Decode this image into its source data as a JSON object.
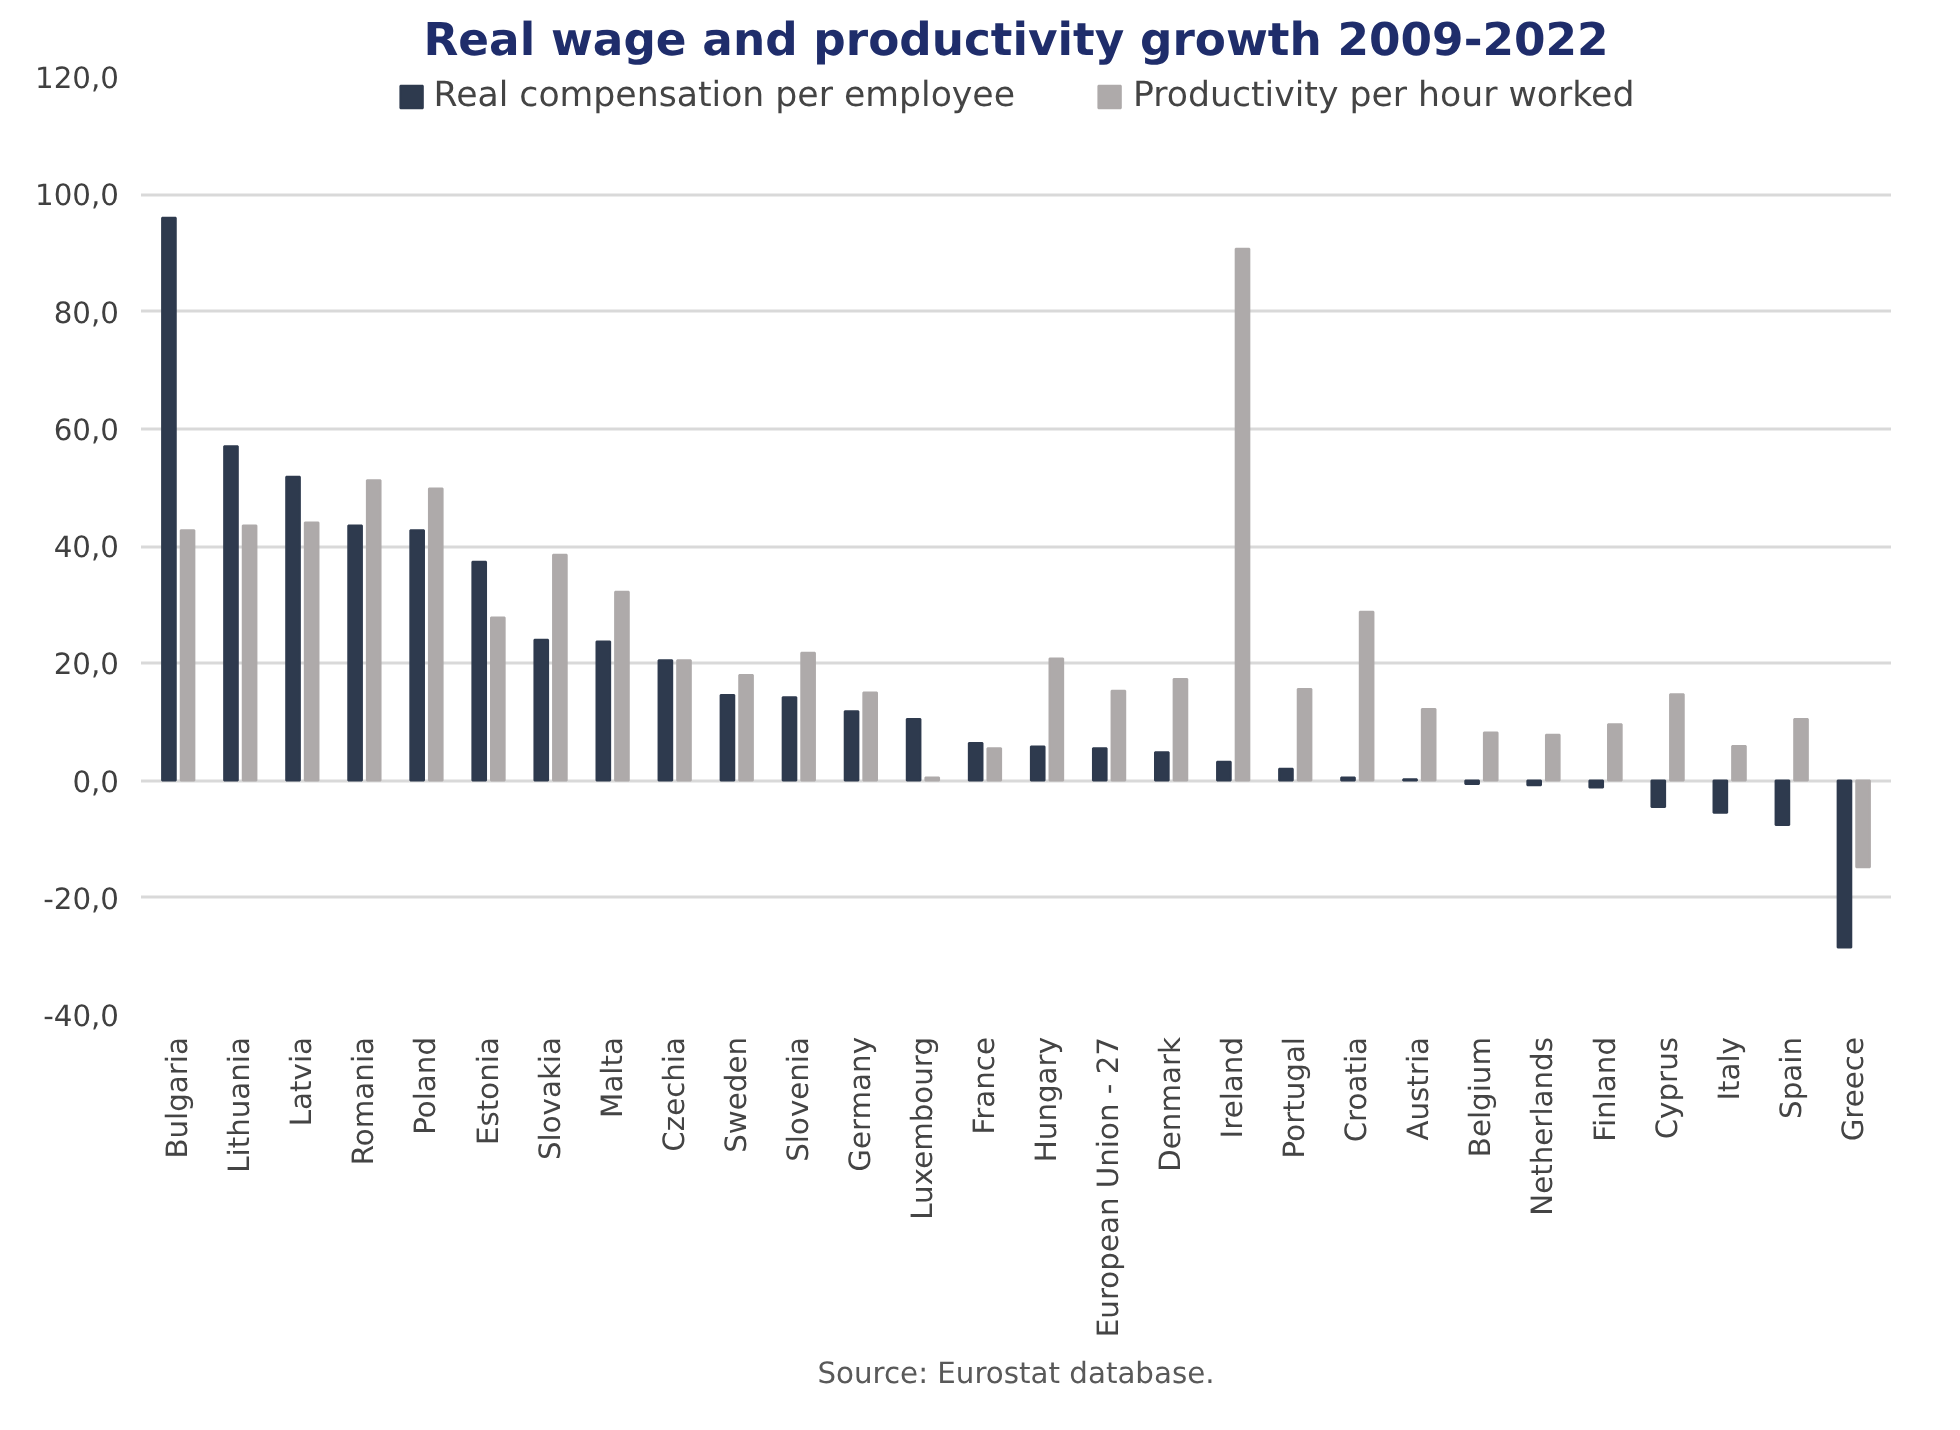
{
  "chart_data": {
    "type": "bar",
    "title": "Real wage and productivity growth 2009-2022",
    "categories": [
      "Bulgaria",
      "Lithuania",
      "Latvia",
      "Romania",
      "Poland",
      "Estonia",
      "Slovakia",
      "Malta",
      "Czechia",
      "Sweden",
      "Slovenia",
      "Germany",
      "Luxembourg",
      "France",
      "Hungary",
      "European Union - 27",
      "Denmark",
      "Ireland",
      "Portugal",
      "Croatia",
      "Austria",
      "Belgium",
      "Netherlands",
      "Finland",
      "Cyprus",
      "Italy",
      "Spain",
      "Greece"
    ],
    "series": [
      {
        "name": "Real compensation per employee",
        "color": "#2e3a4e",
        "values": [
          96.0,
          57.0,
          51.8,
          43.5,
          42.7,
          37.3,
          24.0,
          23.7,
          20.5,
          14.6,
          14.2,
          11.8,
          10.5,
          6.4,
          5.8,
          5.5,
          4.8,
          3.2,
          2.0,
          0.5,
          0.2,
          -0.6,
          -0.8,
          -1.2,
          -4.5,
          -5.5,
          -7.6,
          -28.5
        ]
      },
      {
        "name": "Productivity per hour worked",
        "color": "#aeaaaa",
        "values": [
          42.7,
          43.5,
          44.0,
          51.2,
          49.8,
          27.8,
          38.5,
          32.2,
          20.5,
          18.0,
          21.8,
          15.0,
          0.5,
          5.5,
          20.8,
          15.3,
          17.3,
          90.7,
          15.6,
          28.8,
          12.2,
          8.2,
          7.8,
          9.6,
          14.7,
          5.9,
          10.5,
          -14.8
        ]
      }
    ],
    "ylim": [
      -40,
      120
    ],
    "yticks": [
      {
        "value": -40,
        "label": "-40,0"
      },
      {
        "value": -20,
        "label": "-20,0"
      },
      {
        "value": 0,
        "label": "0,0"
      },
      {
        "value": 20,
        "label": "20,0"
      },
      {
        "value": 40,
        "label": "40,0"
      },
      {
        "value": 60,
        "label": "60,0"
      },
      {
        "value": 80,
        "label": "80,0"
      },
      {
        "value": 100,
        "label": "100,0"
      },
      {
        "value": 120,
        "label": "120,0"
      }
    ],
    "grid": "y",
    "legend": "top",
    "annotations": [
      "Source: Eurostat database."
    ]
  }
}
